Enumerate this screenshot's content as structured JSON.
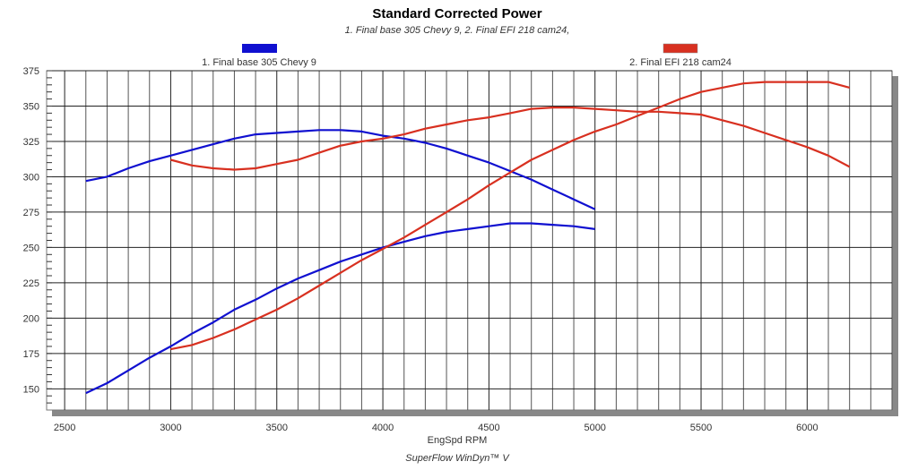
{
  "chart_data": {
    "type": "line",
    "title": "Standard Corrected Power",
    "subtitle": "1. Final base 305 Chevy 9, 2. Final EFI 218 cam24,",
    "xlabel": "EngSpd RPM",
    "footer": "SuperFlow WinDyn™ V",
    "xlim": [
      2415,
      6400
    ],
    "ylim": [
      135,
      375
    ],
    "xticks": [
      2500,
      3000,
      3500,
      4000,
      4500,
      5000,
      5500,
      6000
    ],
    "yticks": [
      150,
      175,
      200,
      225,
      250,
      275,
      300,
      325,
      350,
      375
    ],
    "grid": true,
    "legend": [
      {
        "label": "1. Final base 305 Chevy 9",
        "color": "#1010d0"
      },
      {
        "label": "2. Final EFI 218 cam24",
        "color": "#d83020"
      }
    ],
    "series": [
      {
        "name": "1. Final base 305 Chevy 9 torque",
        "color": "#1010d0",
        "x": [
          2600,
          2700,
          2800,
          2900,
          3000,
          3100,
          3200,
          3300,
          3400,
          3500,
          3600,
          3700,
          3800,
          3900,
          4000,
          4100,
          4200,
          4300,
          4400,
          4500,
          4600,
          4700,
          4800,
          4900,
          5000
        ],
        "y": [
          297,
          300,
          306,
          311,
          315,
          319,
          323,
          327,
          330,
          331,
          332,
          333,
          333,
          332,
          329,
          327,
          324,
          320,
          315,
          310,
          304,
          298,
          291,
          284,
          277
        ]
      },
      {
        "name": "1. Final base 305 Chevy 9 power",
        "color": "#1010d0",
        "x": [
          2600,
          2700,
          2800,
          2900,
          3000,
          3100,
          3200,
          3300,
          3400,
          3500,
          3600,
          3700,
          3800,
          3900,
          4000,
          4100,
          4200,
          4300,
          4400,
          4500,
          4600,
          4700,
          4800,
          4900,
          5000
        ],
        "y": [
          147,
          154,
          163,
          172,
          180,
          189,
          197,
          206,
          213,
          221,
          228,
          234,
          240,
          245,
          250,
          254,
          258,
          261,
          263,
          265,
          267,
          267,
          266,
          265,
          263
        ]
      },
      {
        "name": "2. Final EFI 218 cam24 torque",
        "color": "#d83020",
        "x": [
          3000,
          3100,
          3200,
          3300,
          3400,
          3500,
          3600,
          3700,
          3800,
          3900,
          4000,
          4100,
          4200,
          4300,
          4400,
          4500,
          4600,
          4700,
          4800,
          4900,
          5000,
          5100,
          5200,
          5300,
          5400,
          5500,
          5600,
          5700,
          5800,
          5900,
          6000,
          6100,
          6200
        ],
        "y": [
          312,
          308,
          306,
          305,
          306,
          309,
          312,
          317,
          322,
          325,
          327,
          330,
          334,
          337,
          340,
          342,
          345,
          348,
          349,
          349,
          348,
          347,
          346,
          346,
          345,
          344,
          340,
          336,
          331,
          326,
          321,
          315,
          307
        ]
      },
      {
        "name": "2. Final EFI 218 cam24 power",
        "color": "#d83020",
        "x": [
          3000,
          3100,
          3200,
          3300,
          3400,
          3500,
          3600,
          3700,
          3800,
          3900,
          4000,
          4100,
          4200,
          4300,
          4400,
          4500,
          4600,
          4700,
          4800,
          4900,
          5000,
          5100,
          5200,
          5300,
          5400,
          5500,
          5600,
          5700,
          5800,
          5900,
          6000,
          6100,
          6200
        ],
        "y": [
          178,
          181,
          186,
          192,
          199,
          206,
          214,
          223,
          232,
          241,
          249,
          257,
          266,
          275,
          284,
          294,
          303,
          312,
          319,
          326,
          332,
          337,
          343,
          349,
          355,
          360,
          363,
          366,
          367,
          367,
          367,
          367,
          363
        ]
      }
    ]
  }
}
